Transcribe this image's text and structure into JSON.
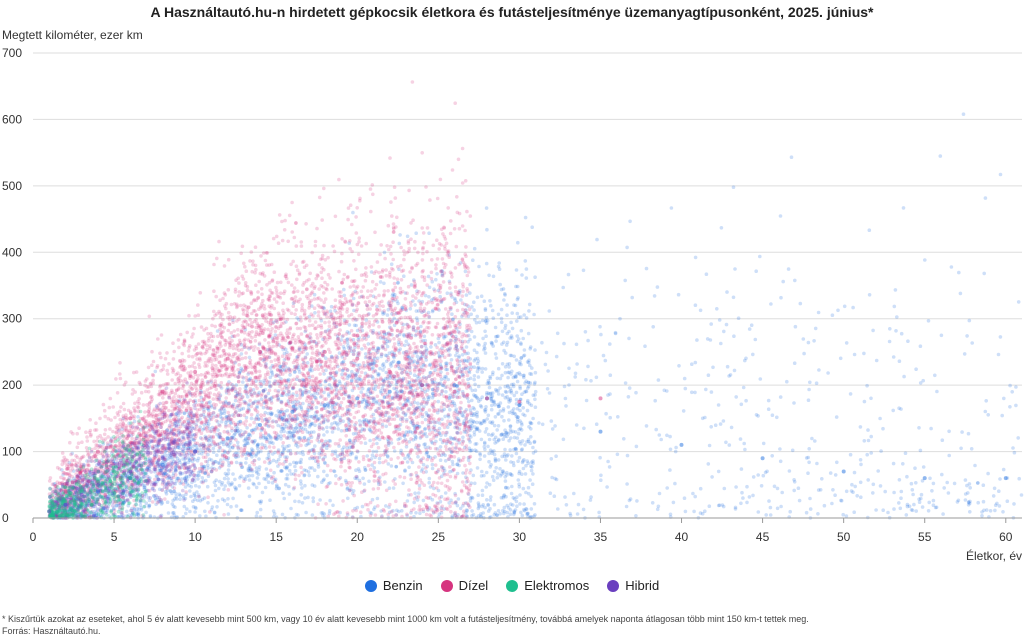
{
  "chart_data": {
    "type": "scatter",
    "title": "A Használtautó.hu-n hirdetett gépkocsik életkora és futásteljesítménye üzemanyagtípusonként, 2025. június*",
    "ylabel": "Megtett kilométer, ezer km",
    "xlabel": "Életkor, év",
    "xlim": [
      0,
      61
    ],
    "ylim": [
      0,
      700
    ],
    "xticks": [
      0,
      5,
      10,
      15,
      20,
      25,
      30,
      35,
      40,
      45,
      50,
      55,
      60
    ],
    "yticks": [
      0,
      100,
      200,
      300,
      400,
      500,
      600,
      700
    ],
    "grid": "horizontal",
    "legend_position": "bottom",
    "series": [
      {
        "name": "Benzin",
        "color": "#1f6fe0",
        "sample_points": [
          [
            2,
            20
          ],
          [
            4,
            40
          ],
          [
            6,
            60
          ],
          [
            8,
            80
          ],
          [
            10,
            100
          ],
          [
            12,
            120
          ],
          [
            14,
            140
          ],
          [
            16,
            160
          ],
          [
            18,
            170
          ],
          [
            20,
            180
          ],
          [
            22,
            190
          ],
          [
            24,
            200
          ],
          [
            26,
            200
          ],
          [
            28,
            180
          ],
          [
            30,
            170
          ],
          [
            35,
            130
          ],
          [
            40,
            110
          ],
          [
            45,
            90
          ],
          [
            50,
            70
          ],
          [
            55,
            60
          ],
          [
            60,
            60
          ]
        ]
      },
      {
        "name": "Dízel",
        "color": "#d6347f",
        "sample_points": [
          [
            2,
            40
          ],
          [
            4,
            100
          ],
          [
            6,
            150
          ],
          [
            8,
            190
          ],
          [
            10,
            220
          ],
          [
            12,
            240
          ],
          [
            14,
            250
          ],
          [
            16,
            255
          ],
          [
            18,
            250
          ],
          [
            20,
            240
          ],
          [
            22,
            220
          ],
          [
            24,
            200
          ],
          [
            26,
            190
          ],
          [
            28,
            180
          ],
          [
            30,
            175
          ],
          [
            35,
            180
          ]
        ]
      },
      {
        "name": "Elektromos",
        "color": "#1fbf8f",
        "sample_points": [
          [
            1,
            10
          ],
          [
            2,
            25
          ],
          [
            3,
            40
          ],
          [
            4,
            55
          ],
          [
            5,
            70
          ],
          [
            6,
            60
          ]
        ]
      },
      {
        "name": "Hibrid",
        "color": "#6a3fbf",
        "sample_points": [
          [
            1,
            10
          ],
          [
            2,
            20
          ],
          [
            3,
            35
          ],
          [
            4,
            50
          ],
          [
            6,
            70
          ],
          [
            8,
            90
          ],
          [
            10,
            100
          ]
        ]
      }
    ]
  },
  "footnote": "* Kiszűrtük azokat az eseteket, ahol 5 év alatt kevesebb mint 500 km, vagy 10 év alatt kevesebb mint 1000 km volt a futásteljesítmény, továbbá amelyek naponta átlagosan több mint 150 km-t tettek meg.",
  "source": "Forrás: Használtautó.hu."
}
